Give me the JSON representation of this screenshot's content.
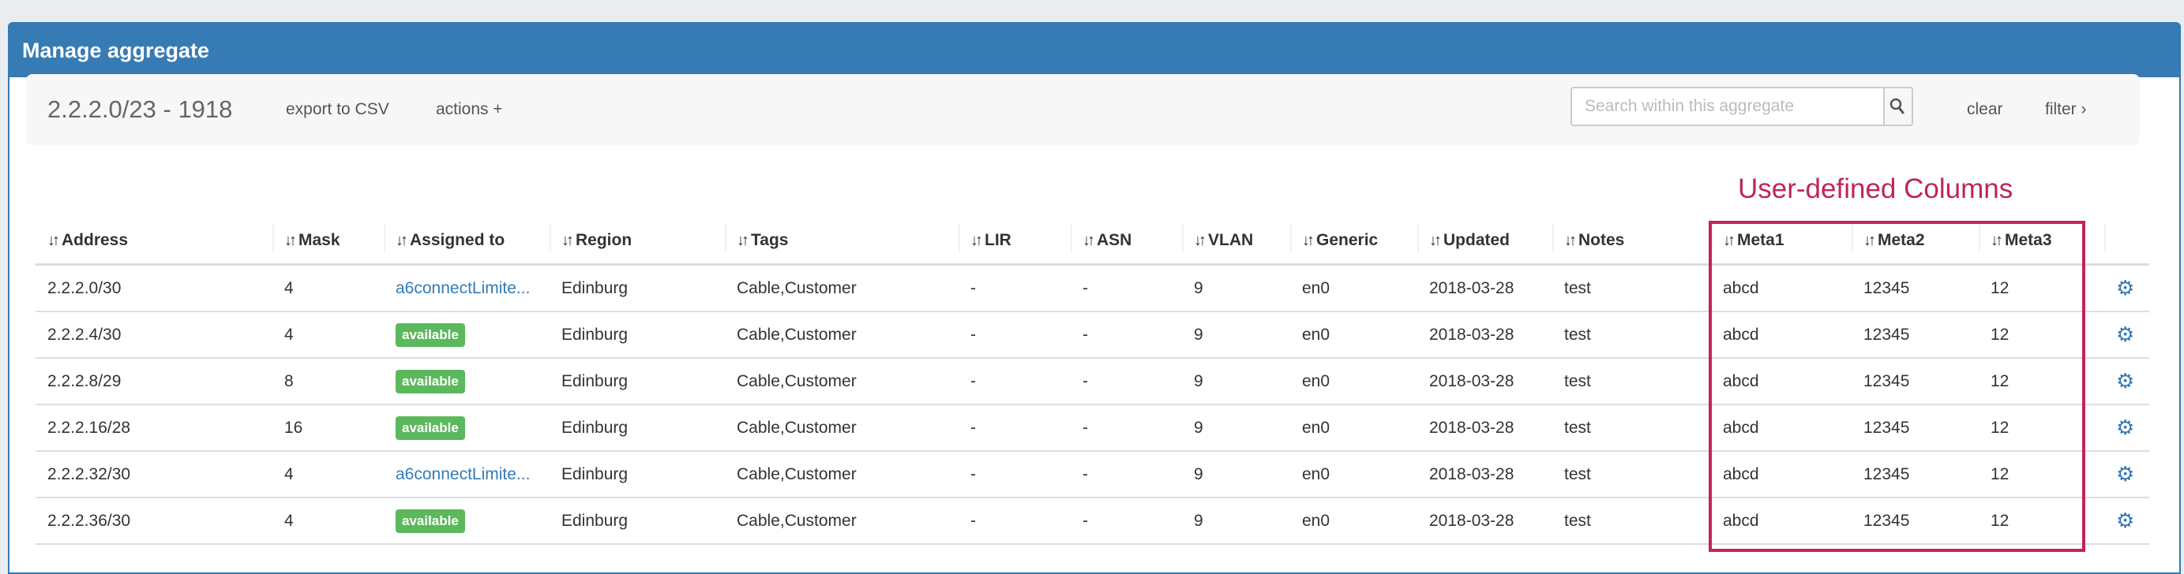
{
  "panel": {
    "title": "Manage aggregate"
  },
  "toolbar": {
    "aggregate": "2.2.2.0/23 - 1918",
    "export_label": "export to CSV",
    "actions_label": "actions +",
    "search_placeholder": "Search within this aggregate",
    "search_value": "",
    "clear_label": "clear",
    "filter_label": "filter ›"
  },
  "annotation": {
    "label": "User-defined Columns",
    "color": "#c0245e"
  },
  "table": {
    "sort_icon": "↓↑",
    "columns": [
      "Address",
      "Mask",
      "Assigned to",
      "Region",
      "Tags",
      "LIR",
      "ASN",
      "VLAN",
      "Generic",
      "Updated",
      "Notes",
      "Meta1",
      "Meta2",
      "Meta3"
    ],
    "rows": [
      {
        "address": "2.2.2.0/30",
        "mask": "4",
        "assigned": "a6connectLimite...",
        "assigned_type": "link",
        "region": "Edinburg",
        "tags": "Cable,Customer",
        "lir": "-",
        "asn": "-",
        "vlan": "9",
        "generic": "en0",
        "updated": "2018-03-28",
        "notes": "test",
        "meta1": "abcd",
        "meta2": "12345",
        "meta3": "12"
      },
      {
        "address": "2.2.2.4/30",
        "mask": "4",
        "assigned": "available",
        "assigned_type": "badge",
        "region": "Edinburg",
        "tags": "Cable,Customer",
        "lir": "-",
        "asn": "-",
        "vlan": "9",
        "generic": "en0",
        "updated": "2018-03-28",
        "notes": "test",
        "meta1": "abcd",
        "meta2": "12345",
        "meta3": "12"
      },
      {
        "address": "2.2.2.8/29",
        "mask": "8",
        "assigned": "available",
        "assigned_type": "badge",
        "region": "Edinburg",
        "tags": "Cable,Customer",
        "lir": "-",
        "asn": "-",
        "vlan": "9",
        "generic": "en0",
        "updated": "2018-03-28",
        "notes": "test",
        "meta1": "abcd",
        "meta2": "12345",
        "meta3": "12"
      },
      {
        "address": "2.2.2.16/28",
        "mask": "16",
        "assigned": "available",
        "assigned_type": "badge",
        "region": "Edinburg",
        "tags": "Cable,Customer",
        "lir": "-",
        "asn": "-",
        "vlan": "9",
        "generic": "en0",
        "updated": "2018-03-28",
        "notes": "test",
        "meta1": "abcd",
        "meta2": "12345",
        "meta3": "12"
      },
      {
        "address": "2.2.2.32/30",
        "mask": "4",
        "assigned": "a6connectLimite...",
        "assigned_type": "link",
        "region": "Edinburg",
        "tags": "Cable,Customer",
        "lir": "-",
        "asn": "-",
        "vlan": "9",
        "generic": "en0",
        "updated": "2018-03-28",
        "notes": "test",
        "meta1": "abcd",
        "meta2": "12345",
        "meta3": "12"
      },
      {
        "address": "2.2.2.36/30",
        "mask": "4",
        "assigned": "available",
        "assigned_type": "badge",
        "region": "Edinburg",
        "tags": "Cable,Customer",
        "lir": "-",
        "asn": "-",
        "vlan": "9",
        "generic": "en0",
        "updated": "2018-03-28",
        "notes": "test",
        "meta1": "abcd",
        "meta2": "12345",
        "meta3": "12"
      }
    ]
  }
}
